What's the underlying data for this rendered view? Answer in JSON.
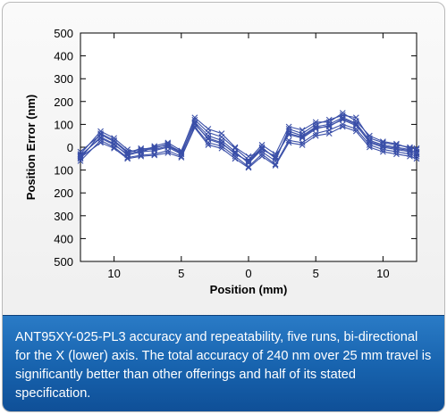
{
  "chart_data": {
    "type": "line",
    "xlabel": "Position (mm)",
    "ylabel": "Position Error (nm)",
    "x_tick_labels": [
      "10",
      "5",
      "0",
      "5",
      "10"
    ],
    "x_tick_values": [
      -10,
      -5,
      0,
      5,
      10
    ],
    "xlim": [
      -12.5,
      12.5
    ],
    "y_tick_labels": [
      "500",
      "400",
      "300",
      "200",
      "100",
      "0",
      "100",
      "200",
      "300",
      "400",
      "500"
    ],
    "y_tick_values": [
      500,
      400,
      300,
      200,
      100,
      0,
      -100,
      -200,
      -300,
      -400,
      -500
    ],
    "ylim": [
      -500,
      500
    ],
    "grid": false,
    "marker": "x",
    "line_color": "#3a4fa8",
    "x": [
      -12.5,
      -11,
      -10,
      -9,
      -8,
      -7,
      -6,
      -5,
      -4,
      -3,
      -2,
      -1,
      0,
      1,
      2,
      3,
      4,
      5,
      6,
      7,
      8,
      9,
      10,
      11,
      12,
      12.5
    ],
    "series": [
      {
        "values": [
          -50,
          60,
          30,
          -20,
          -10,
          0,
          10,
          -20,
          130,
          80,
          60,
          0,
          -40,
          -20,
          -60,
          80,
          60,
          100,
          120,
          140,
          130,
          40,
          20,
          10,
          0,
          -10
        ]
      },
      {
        "values": [
          -40,
          45,
          15,
          -35,
          -20,
          -15,
          0,
          -30,
          110,
          50,
          30,
          -20,
          -70,
          -10,
          -40,
          55,
          40,
          80,
          95,
          120,
          95,
          25,
          5,
          -5,
          -15,
          -20
        ]
      },
      {
        "values": [
          -30,
          70,
          40,
          -10,
          -25,
          5,
          20,
          -15,
          120,
          65,
          45,
          -5,
          -55,
          10,
          -30,
          90,
          75,
          110,
          110,
          150,
          115,
          50,
          25,
          15,
          -5,
          -5
        ]
      },
      {
        "values": [
          -60,
          30,
          0,
          -45,
          -35,
          -30,
          -15,
          -40,
          90,
          20,
          5,
          -40,
          -85,
          -30,
          -75,
          30,
          20,
          60,
          75,
          100,
          80,
          10,
          -10,
          -20,
          -30,
          -40
        ]
      },
      {
        "values": [
          -20,
          55,
          25,
          -25,
          -5,
          -10,
          5,
          -25,
          100,
          40,
          20,
          -30,
          -60,
          0,
          -50,
          70,
          50,
          90,
          100,
          130,
          105,
          30,
          10,
          0,
          -10,
          -25
        ]
      },
      {
        "values": [
          -45,
          20,
          -5,
          -50,
          -40,
          -35,
          -25,
          -45,
          85,
          10,
          -5,
          -50,
          -90,
          -40,
          -80,
          20,
          10,
          50,
          60,
          90,
          70,
          0,
          -20,
          -30,
          -40,
          -50
        ]
      },
      {
        "values": [
          -35,
          40,
          10,
          -30,
          -15,
          -5,
          15,
          -30,
          105,
          35,
          15,
          -25,
          -65,
          -5,
          -45,
          60,
          45,
          85,
          90,
          125,
          100,
          20,
          0,
          -10,
          -20,
          -30
        ]
      }
    ]
  },
  "caption": {
    "text": "ANT95XY-025-PL3 accuracy and repeatability, five runs, bi-directional for the X (lower) axis. The total accuracy of 240 nm over 25 mm travel is significantly better than other offerings and half of its stated specification."
  },
  "colors": {
    "caption_background": "#1762ad",
    "caption_text": "#ffffff",
    "series_line": "#3a4fa8"
  }
}
